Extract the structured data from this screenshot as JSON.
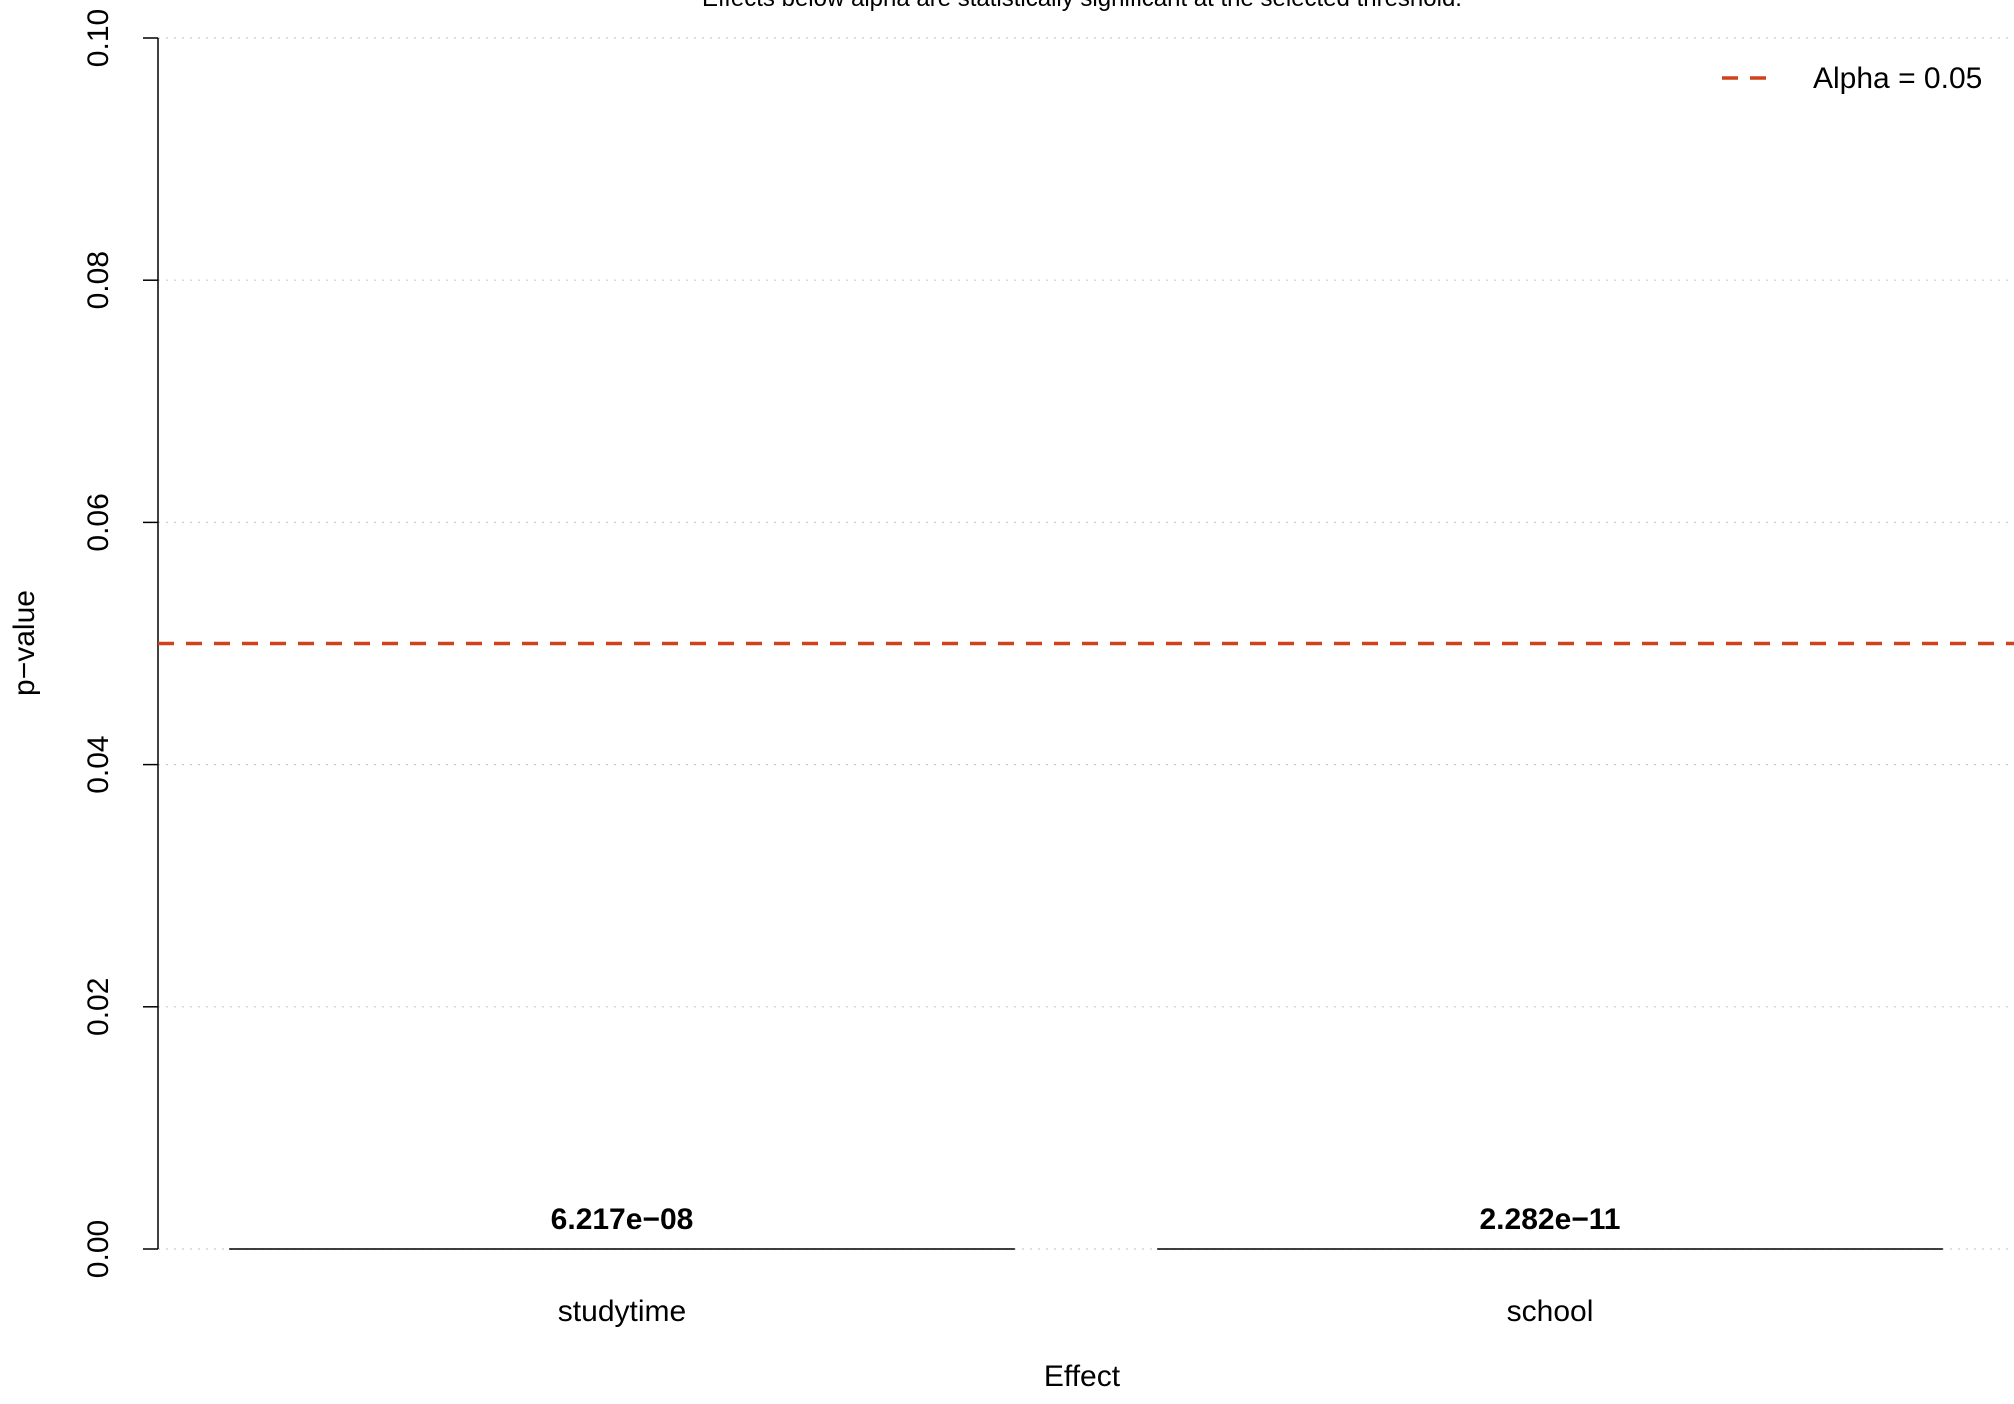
{
  "chart_data": {
    "type": "bar",
    "subtitle": "Effects below alpha are statistically significant at the selected threshold.",
    "xlabel": "Effect",
    "ylabel": "p−value",
    "categories": [
      "studytime",
      "school"
    ],
    "values": [
      6.217e-08,
      2.282e-11
    ],
    "value_labels": [
      "6.217e−08",
      "2.282e−11"
    ],
    "ylim": [
      0,
      0.1
    ],
    "y_ticks": [
      0.0,
      0.02,
      0.04,
      0.06,
      0.08,
      0.1
    ],
    "y_tick_labels": [
      "0.00",
      "0.02",
      "0.04",
      "0.06",
      "0.08",
      "0.10"
    ],
    "reference_line": {
      "value": 0.05,
      "label": "Alpha = 0.05",
      "color": "#d0421b",
      "style": "dashed"
    },
    "grid": true,
    "grid_axis": "y",
    "legend": {
      "position": "top-right",
      "entries": [
        "Alpha = 0.05"
      ]
    },
    "colors": {
      "bar_fill": "#3a6ea5",
      "bar_border": "#000000",
      "axis": "#000000",
      "grid": "#cccccc"
    }
  }
}
